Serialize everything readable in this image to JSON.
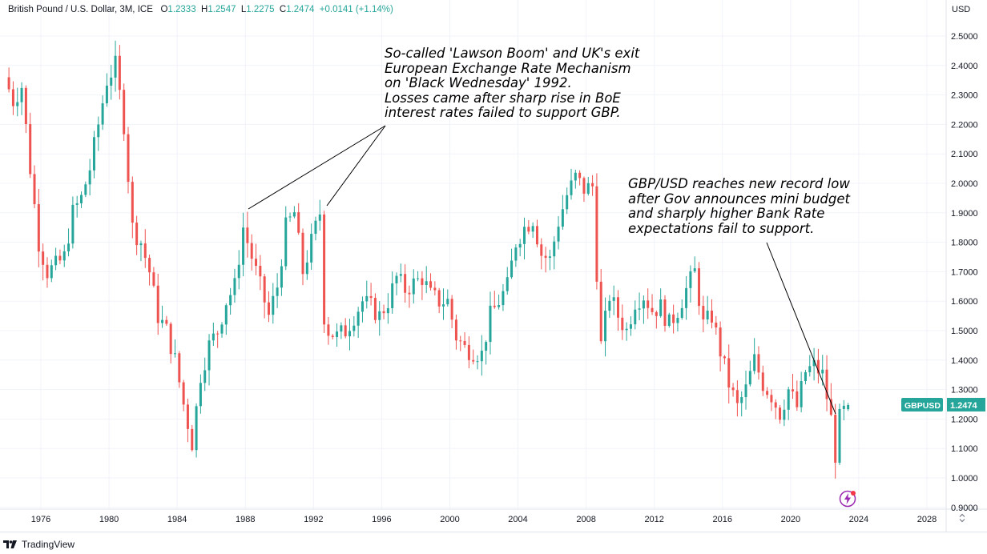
{
  "legend": {
    "symbol_name": "British Pound / U.S. Dollar, 3M, ICE",
    "open_label": "O",
    "open_value": "1.2333",
    "high_label": "H",
    "high_value": "1.2547",
    "low_label": "L",
    "low_value": "1.2275",
    "close_label": "C",
    "close_value": "1.2474",
    "change": "+0.0141 (+1.14%)"
  },
  "axis": {
    "currency": "USD"
  },
  "price_badge": {
    "ticker": "GBPUSD",
    "value": "1.2474",
    "color": "#26a69a"
  },
  "annotations": {
    "top": [
      "So-called 'Lawson Boom' and UK's exit",
      "European Exchange Rate Mechanism",
      "on 'Black Wednesday' 1992.",
      "Losses came after sharp rise in BoE",
      "interest rates failed to support GBP."
    ],
    "right": [
      "GBP/USD reaches new record low",
      "after Gov announces mini budget",
      "and sharply higher Bank Rate",
      "expectations fail to support."
    ]
  },
  "footer": {
    "brand": "TradingView"
  },
  "colors": {
    "up": "#26a69a",
    "down": "#ef5350",
    "grid": "#f0f3fa",
    "axis_text": "#131722"
  },
  "chart_data": {
    "type": "candlestick",
    "title": "British Pound / U.S. Dollar, 3M, ICE",
    "ylabel": "USD",
    "ylim": [
      0.9,
      2.55
    ],
    "xlim": [
      1974.0,
      2030.0
    ],
    "y_ticks": [
      "2.5000",
      "2.4000",
      "2.3000",
      "2.2000",
      "2.1000",
      "2.0000",
      "1.9000",
      "1.8000",
      "1.7000",
      "1.6000",
      "1.5000",
      "1.4000",
      "1.3000",
      "1.2000",
      "1.1000",
      "1.0000",
      "0.9000"
    ],
    "x_ticks": [
      "1976",
      "1980",
      "1984",
      "1988",
      "1992",
      "1996",
      "2000",
      "2004",
      "2008",
      "2012",
      "2016",
      "2020",
      "2024",
      "2028"
    ],
    "path": [
      [
        1974.0,
        2.36
      ],
      [
        1974.5,
        2.28
      ],
      [
        1975.0,
        2.33
      ],
      [
        1975.5,
        2.05
      ],
      [
        1976.0,
        1.8
      ],
      [
        1976.5,
        1.7
      ],
      [
        1977.0,
        1.72
      ],
      [
        1977.5,
        1.75
      ],
      [
        1978.0,
        1.9
      ],
      [
        1978.5,
        1.95
      ],
      [
        1979.0,
        2.05
      ],
      [
        1979.5,
        2.2
      ],
      [
        1980.0,
        2.35
      ],
      [
        1980.5,
        2.4
      ],
      [
        1981.0,
        2.2
      ],
      [
        1981.5,
        1.85
      ],
      [
        1982.0,
        1.8
      ],
      [
        1982.5,
        1.7
      ],
      [
        1983.0,
        1.55
      ],
      [
        1983.5,
        1.5
      ],
      [
        1984.0,
        1.4
      ],
      [
        1984.5,
        1.25
      ],
      [
        1985.0,
        1.12
      ],
      [
        1985.5,
        1.35
      ],
      [
        1986.0,
        1.45
      ],
      [
        1986.5,
        1.5
      ],
      [
        1987.0,
        1.6
      ],
      [
        1987.5,
        1.65
      ],
      [
        1988.0,
        1.85
      ],
      [
        1988.5,
        1.75
      ],
      [
        1989.0,
        1.65
      ],
      [
        1989.5,
        1.55
      ],
      [
        1990.0,
        1.65
      ],
      [
        1990.5,
        1.85
      ],
      [
        1991.0,
        1.9
      ],
      [
        1991.5,
        1.7
      ],
      [
        1992.0,
        1.8
      ],
      [
        1992.5,
        1.9
      ],
      [
        1992.75,
        1.55
      ],
      [
        1993.0,
        1.5
      ],
      [
        1993.5,
        1.48
      ],
      [
        1994.0,
        1.5
      ],
      [
        1994.5,
        1.55
      ],
      [
        1995.0,
        1.6
      ],
      [
        1995.5,
        1.58
      ],
      [
        1996.0,
        1.55
      ],
      [
        1996.5,
        1.6
      ],
      [
        1997.0,
        1.68
      ],
      [
        1997.5,
        1.64
      ],
      [
        1998.0,
        1.66
      ],
      [
        1998.5,
        1.68
      ],
      [
        1999.0,
        1.62
      ],
      [
        1999.5,
        1.6
      ],
      [
        2000.0,
        1.6
      ],
      [
        2000.5,
        1.48
      ],
      [
        2001.0,
        1.44
      ],
      [
        2001.5,
        1.43
      ],
      [
        2002.0,
        1.42
      ],
      [
        2002.5,
        1.55
      ],
      [
        2003.0,
        1.6
      ],
      [
        2003.5,
        1.65
      ],
      [
        2004.0,
        1.8
      ],
      [
        2004.5,
        1.85
      ],
      [
        2005.0,
        1.88
      ],
      [
        2005.5,
        1.76
      ],
      [
        2006.0,
        1.74
      ],
      [
        2006.5,
        1.87
      ],
      [
        2007.0,
        1.96
      ],
      [
        2007.5,
        2.02
      ],
      [
        2008.0,
        1.98
      ],
      [
        2008.5,
        1.99
      ],
      [
        2008.75,
        1.7
      ],
      [
        2009.0,
        1.45
      ],
      [
        2009.5,
        1.62
      ],
      [
        2010.0,
        1.55
      ],
      [
        2010.5,
        1.5
      ],
      [
        2011.0,
        1.6
      ],
      [
        2011.5,
        1.62
      ],
      [
        2012.0,
        1.57
      ],
      [
        2012.5,
        1.58
      ],
      [
        2013.0,
        1.52
      ],
      [
        2013.5,
        1.57
      ],
      [
        2014.0,
        1.64
      ],
      [
        2014.5,
        1.7
      ],
      [
        2015.0,
        1.52
      ],
      [
        2015.5,
        1.55
      ],
      [
        2016.0,
        1.43
      ],
      [
        2016.5,
        1.32
      ],
      [
        2017.0,
        1.24
      ],
      [
        2017.5,
        1.3
      ],
      [
        2018.0,
        1.4
      ],
      [
        2018.5,
        1.32
      ],
      [
        2019.0,
        1.28
      ],
      [
        2019.5,
        1.22
      ],
      [
        2020.0,
        1.3
      ],
      [
        2020.5,
        1.24
      ],
      [
        2021.0,
        1.36
      ],
      [
        2021.5,
        1.38
      ],
      [
        2022.0,
        1.35
      ],
      [
        2022.5,
        1.2
      ],
      [
        2022.75,
        1.08
      ],
      [
        2023.0,
        1.2
      ],
      [
        2023.5,
        1.25
      ]
    ],
    "last": {
      "open": 1.2333,
      "high": 1.2547,
      "low": 1.2275,
      "close": 1.2474
    }
  }
}
